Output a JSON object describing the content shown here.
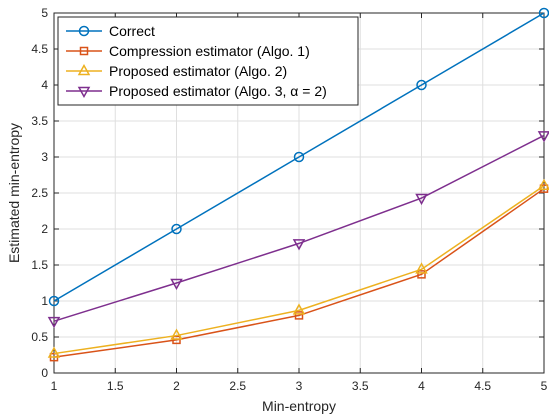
{
  "chart_data": {
    "type": "line",
    "title": "",
    "xlabel": "Min-entropy",
    "ylabel": "Estimated min-entropy",
    "xlim": [
      1,
      5
    ],
    "ylim": [
      0,
      5
    ],
    "xticks": [
      1,
      1.5,
      2,
      2.5,
      3,
      3.5,
      4,
      4.5,
      5
    ],
    "yticks": [
      0,
      0.5,
      1,
      1.5,
      2,
      2.5,
      3,
      3.5,
      4,
      4.5,
      5
    ],
    "xtick_labels": [
      "1",
      "1.5",
      "2",
      "2.5",
      "3",
      "3.5",
      "4",
      "4.5",
      "5"
    ],
    "ytick_labels": [
      "0",
      "0.5",
      "1",
      "1.5",
      "2",
      "2.5",
      "3",
      "3.5",
      "4",
      "4.5",
      "5"
    ],
    "grid": true,
    "legend_position": "top-left",
    "x": [
      1,
      2,
      3,
      4,
      5
    ],
    "series": [
      {
        "name": "Correct",
        "color": "#0072BD",
        "marker": "circle",
        "values": [
          1,
          2,
          3,
          4,
          5
        ]
      },
      {
        "name": "Compression estimator (Algo. 1)",
        "color": "#D95319",
        "marker": "square",
        "values": [
          0.22,
          0.46,
          0.8,
          1.37,
          2.56
        ]
      },
      {
        "name": "Proposed estimator (Algo. 2)",
        "color": "#EDB120",
        "marker": "triangle-up",
        "values": [
          0.27,
          0.52,
          0.87,
          1.44,
          2.6
        ]
      },
      {
        "name": "Proposed estimator (Algo. 3, α = 2)",
        "color": "#7E2F8E",
        "marker": "triangle-down",
        "values": [
          0.72,
          1.25,
          1.8,
          2.43,
          3.3
        ]
      }
    ]
  }
}
